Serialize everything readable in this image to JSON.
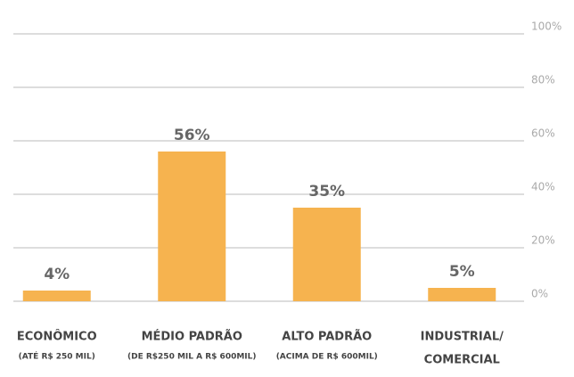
{
  "chart_data": {
    "type": "bar",
    "categories": [
      "ECONÔMICO",
      "MÉDIO PADRÃO",
      "ALTO PADRÃO",
      "INDUSTRIAL/"
    ],
    "category_notes": [
      "(ATÉ R$ 250 MIL)",
      "(DE R$250 MIL A R$ 600MIL)",
      "(ACIMA DE R$ 600MIL)",
      "COMERCIAL"
    ],
    "values": [
      4,
      56,
      35,
      5
    ],
    "value_labels": [
      "4%",
      "56%",
      "35%",
      "5%"
    ],
    "color": "#f6b34f",
    "ylim": [
      0,
      100
    ],
    "yticks": [
      {
        "value": 0,
        "label": "0%"
      },
      {
        "value": 20,
        "label": "20%"
      },
      {
        "value": 40,
        "label": "40%"
      },
      {
        "value": 60,
        "label": "60%"
      },
      {
        "value": 80,
        "label": "80%"
      },
      {
        "value": 100,
        "label": "100%"
      }
    ],
    "grid": true
  }
}
